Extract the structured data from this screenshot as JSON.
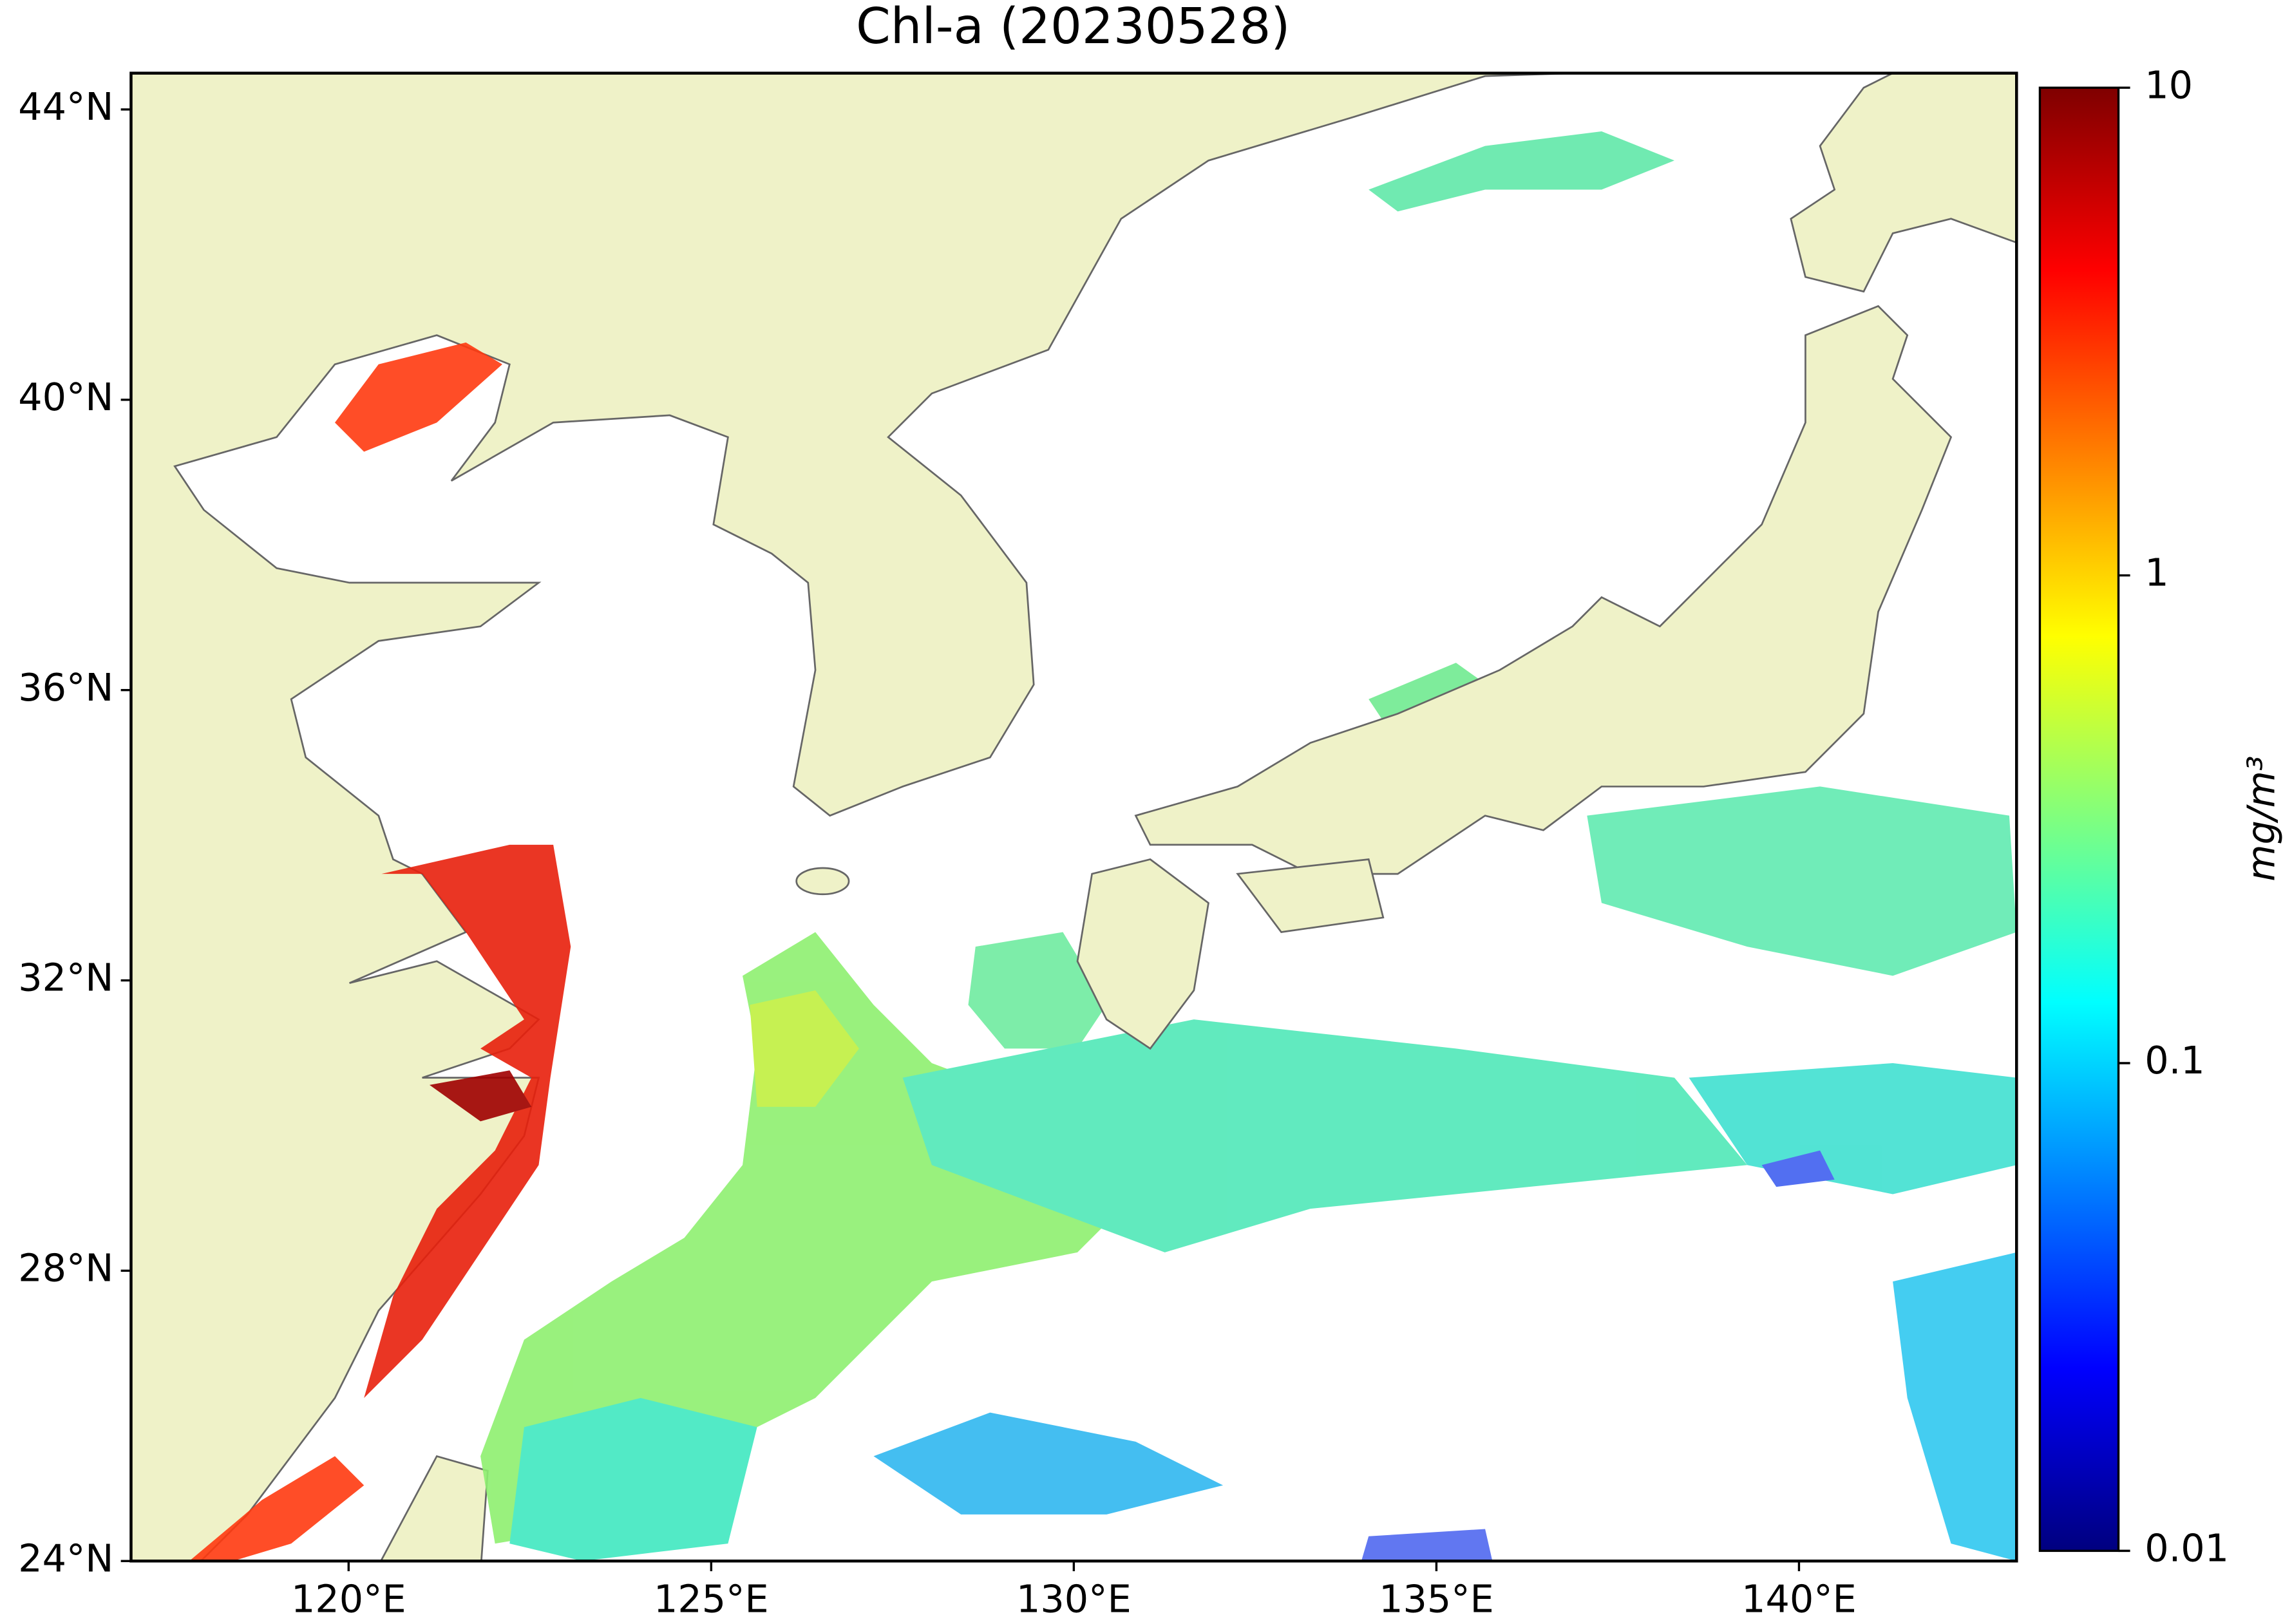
{
  "map": {
    "title": "Chl-a (20230528)",
    "xlim": [
      117,
      143
    ],
    "ylim": [
      24,
      44.5
    ],
    "xticks": [
      {
        "value": 120,
        "label": "120°E"
      },
      {
        "value": 125,
        "label": "125°E"
      },
      {
        "value": 130,
        "label": "130°E"
      },
      {
        "value": 135,
        "label": "135°E"
      },
      {
        "value": 140,
        "label": "140°E"
      }
    ],
    "yticks": [
      {
        "value": 24,
        "label": "24°N"
      },
      {
        "value": 28,
        "label": "28°N"
      },
      {
        "value": 32,
        "label": "32°N"
      },
      {
        "value": 36,
        "label": "36°N"
      },
      {
        "value": 40,
        "label": "40°N"
      },
      {
        "value": 44,
        "label": "44°N"
      }
    ],
    "colorbar": {
      "label": "mg/m³",
      "scale": "log",
      "lim": [
        0.01,
        10
      ],
      "ticks": [
        0.01,
        0.1,
        1,
        10
      ],
      "colormap": "jet"
    }
  }
}
